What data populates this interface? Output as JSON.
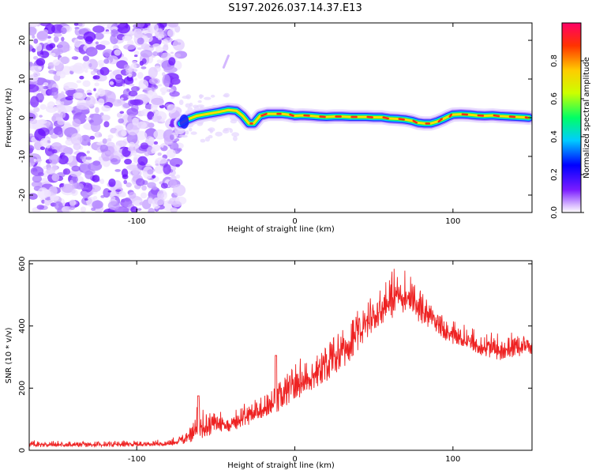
{
  "title": "S197.2026.037.14.37.E13",
  "chart_data": [
    {
      "type": "heatmap",
      "xlabel": "Height of straight line (km)",
      "ylabel": "Frequency (Hz)",
      "xlim": [
        -168,
        150
      ],
      "ylim": [
        -24.5,
        24.5
      ],
      "xticks": [
        -100,
        0,
        100
      ],
      "yticks": [
        20,
        10,
        0,
        -10,
        -20
      ],
      "xtick_labels": [
        "-100",
        "0",
        "100"
      ],
      "ytick_labels": [
        "20",
        "10",
        "0",
        "-10",
        "-20"
      ],
      "noise_region_end_km": -72,
      "ridge": {
        "x": [
          -72,
          -68,
          -62,
          -55,
          -48,
          -42,
          -37,
          -33,
          -29,
          -26,
          -22,
          -17,
          -12,
          -8,
          -4,
          0,
          5,
          10,
          15,
          20,
          25,
          30,
          35,
          40,
          45,
          50,
          55,
          60,
          65,
          70,
          74,
          78,
          82,
          86,
          90,
          94,
          97,
          100,
          105,
          110,
          115,
          120,
          125,
          130,
          135,
          140,
          145,
          148
        ],
        "freq": [
          -1.5,
          -0.5,
          0.5,
          1,
          1.5,
          2,
          1.8,
          0.5,
          -1.5,
          -1.5,
          0.5,
          1,
          1,
          1,
          0.8,
          0.5,
          0.6,
          0.5,
          0.3,
          0.2,
          0.3,
          0.3,
          0.2,
          0.2,
          0.2,
          0.1,
          0.1,
          -0.2,
          -0.3,
          -0.5,
          -0.8,
          -1.3,
          -1.5,
          -1.5,
          -1,
          -0.3,
          0.3,
          0.8,
          0.9,
          0.8,
          0.6,
          0.5,
          0.6,
          0.4,
          0.3,
          0.2,
          0.1,
          0
        ]
      },
      "colorbar": {
        "label": "Normalized spectral amplitude",
        "range": [
          0,
          1
        ],
        "ticks": [
          0.0,
          0.2,
          0.4,
          0.6,
          0.8
        ],
        "tick_labels": [
          "0.0",
          "0.2",
          "0.4",
          "0.6",
          "0.8"
        ]
      }
    },
    {
      "type": "line",
      "xlabel": "Height of straight line (km)",
      "ylabel": "SNR (10 * v/v)",
      "xlim": [
        -168,
        150
      ],
      "ylim": [
        0,
        610
      ],
      "xticks": [
        -100,
        0,
        100
      ],
      "yticks": [
        0,
        200,
        400,
        600
      ],
      "xtick_labels": [
        "-100",
        "0",
        "100"
      ],
      "ytick_labels": [
        "0",
        "200",
        "400",
        "600"
      ],
      "series": [
        {
          "name": "SNR",
          "color": "#ee2222",
          "envelope_x": [
            -168,
            -140,
            -100,
            -80,
            -70,
            -62,
            -55,
            -48,
            -42,
            -35,
            -30,
            -22,
            -15,
            -10,
            -5,
            0,
            10,
            20,
            30,
            40,
            50,
            60,
            66,
            70,
            76,
            82,
            90,
            100,
            110,
            120,
            130,
            140,
            150
          ],
          "envelope_lo": [
            10,
            10,
            12,
            14,
            20,
            30,
            45,
            60,
            60,
            70,
            80,
            100,
            110,
            120,
            140,
            160,
            190,
            220,
            260,
            320,
            380,
            420,
            440,
            440,
            420,
            400,
            370,
            340,
            320,
            300,
            290,
            300,
            310
          ],
          "envelope_hi": [
            35,
            30,
            32,
            35,
            60,
            150,
            130,
            140,
            110,
            150,
            160,
            180,
            200,
            230,
            260,
            290,
            320,
            360,
            420,
            460,
            520,
            590,
            610,
            590,
            560,
            520,
            470,
            420,
            400,
            390,
            380,
            390,
            400
          ]
        }
      ]
    }
  ]
}
